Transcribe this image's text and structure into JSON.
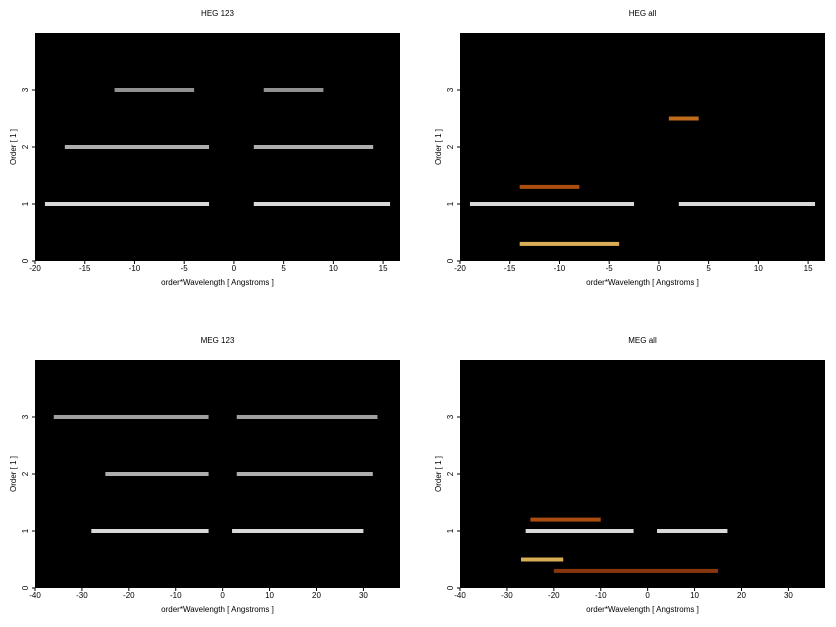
{
  "chart_data": [
    {
      "type": "heatmap",
      "title": "HEG 123",
      "xlabel": "order*Wavelength [ Angstroms ]",
      "ylabel": "Order [ 1 ]",
      "background": "#000000",
      "xlim": [
        -20,
        16.7
      ],
      "ylim": [
        0,
        4
      ],
      "xticks": [
        -20,
        -15,
        -10,
        -5,
        0,
        5,
        10,
        15
      ],
      "yticks": [
        0,
        1,
        2,
        3
      ],
      "streaks": [
        {
          "x": [
            -19,
            -2.5
          ],
          "y": 1,
          "color": "#ffffff"
        },
        {
          "x": [
            2,
            15.7
          ],
          "y": 1,
          "color": "#ffffff"
        },
        {
          "x": [
            -17,
            -2.5
          ],
          "y": 2,
          "color": "#cccccc"
        },
        {
          "x": [
            2,
            14
          ],
          "y": 2,
          "color": "#cccccc"
        },
        {
          "x": [
            -12,
            -4
          ],
          "y": 3,
          "color": "#aaaaaa"
        },
        {
          "x": [
            3,
            9
          ],
          "y": 3,
          "color": "#aaaaaa"
        }
      ]
    },
    {
      "type": "heatmap",
      "title": "HEG all",
      "xlabel": "order*Wavelength [ Angstroms ]",
      "ylabel": "Order [ 1 ]",
      "background": "#000000",
      "xlim": [
        -20,
        16.7
      ],
      "ylim": [
        0,
        4
      ],
      "xticks": [
        -20,
        -15,
        -10,
        -5,
        0,
        5,
        10,
        15
      ],
      "yticks": [
        0,
        1,
        2,
        3
      ],
      "streaks": [
        {
          "x": [
            -19,
            -2.5
          ],
          "y": 1,
          "color": "#ffffff"
        },
        {
          "x": [
            2,
            15.7
          ],
          "y": 1,
          "color": "#ffffff"
        },
        {
          "x": [
            -14,
            -4
          ],
          "y": 0.3,
          "color": "#ffcc66"
        },
        {
          "x": [
            -14,
            -8
          ],
          "y": 1.3,
          "color": "#c85a10"
        },
        {
          "x": [
            1,
            4
          ],
          "y": 2.5,
          "color": "#e08020"
        }
      ]
    },
    {
      "type": "heatmap",
      "title": "MEG 123",
      "xlabel": "order*Wavelength [ Angstroms ]",
      "ylabel": "Order [ 1 ]",
      "background": "#000000",
      "xlim": [
        -40,
        37.8
      ],
      "ylim": [
        0,
        4
      ],
      "xticks": [
        -40,
        -30,
        -20,
        -10,
        0,
        10,
        20,
        30
      ],
      "yticks": [
        0,
        1,
        2,
        3
      ],
      "streaks": [
        {
          "x": [
            -28,
            -3
          ],
          "y": 1,
          "color": "#ffffff"
        },
        {
          "x": [
            2,
            30
          ],
          "y": 1,
          "color": "#ffffff"
        },
        {
          "x": [
            -25,
            -3
          ],
          "y": 2,
          "color": "#cccccc"
        },
        {
          "x": [
            3,
            32
          ],
          "y": 2,
          "color": "#cccccc"
        },
        {
          "x": [
            -36,
            -3
          ],
          "y": 3,
          "color": "#bbbbbb"
        },
        {
          "x": [
            3,
            33
          ],
          "y": 3,
          "color": "#bbbbbb"
        }
      ]
    },
    {
      "type": "heatmap",
      "title": "MEG all",
      "xlabel": "order*Wavelength [ Angstroms ]",
      "ylabel": "Order [ 1 ]",
      "background": "#000000",
      "xlim": [
        -40,
        37.8
      ],
      "ylim": [
        0,
        4
      ],
      "xticks": [
        -40,
        -30,
        -20,
        -10,
        0,
        10,
        20,
        30
      ],
      "yticks": [
        0,
        1,
        2,
        3
      ],
      "streaks": [
        {
          "x": [
            -26,
            -3
          ],
          "y": 1,
          "color": "#ffffff"
        },
        {
          "x": [
            2,
            17
          ],
          "y": 1,
          "color": "#ffffff"
        },
        {
          "x": [
            -27,
            -18
          ],
          "y": 0.5,
          "color": "#ffcc66"
        },
        {
          "x": [
            -25,
            -10
          ],
          "y": 1.2,
          "color": "#c85a10"
        },
        {
          "x": [
            -20,
            15
          ],
          "y": 0.3,
          "color": "#a04010"
        }
      ]
    }
  ]
}
